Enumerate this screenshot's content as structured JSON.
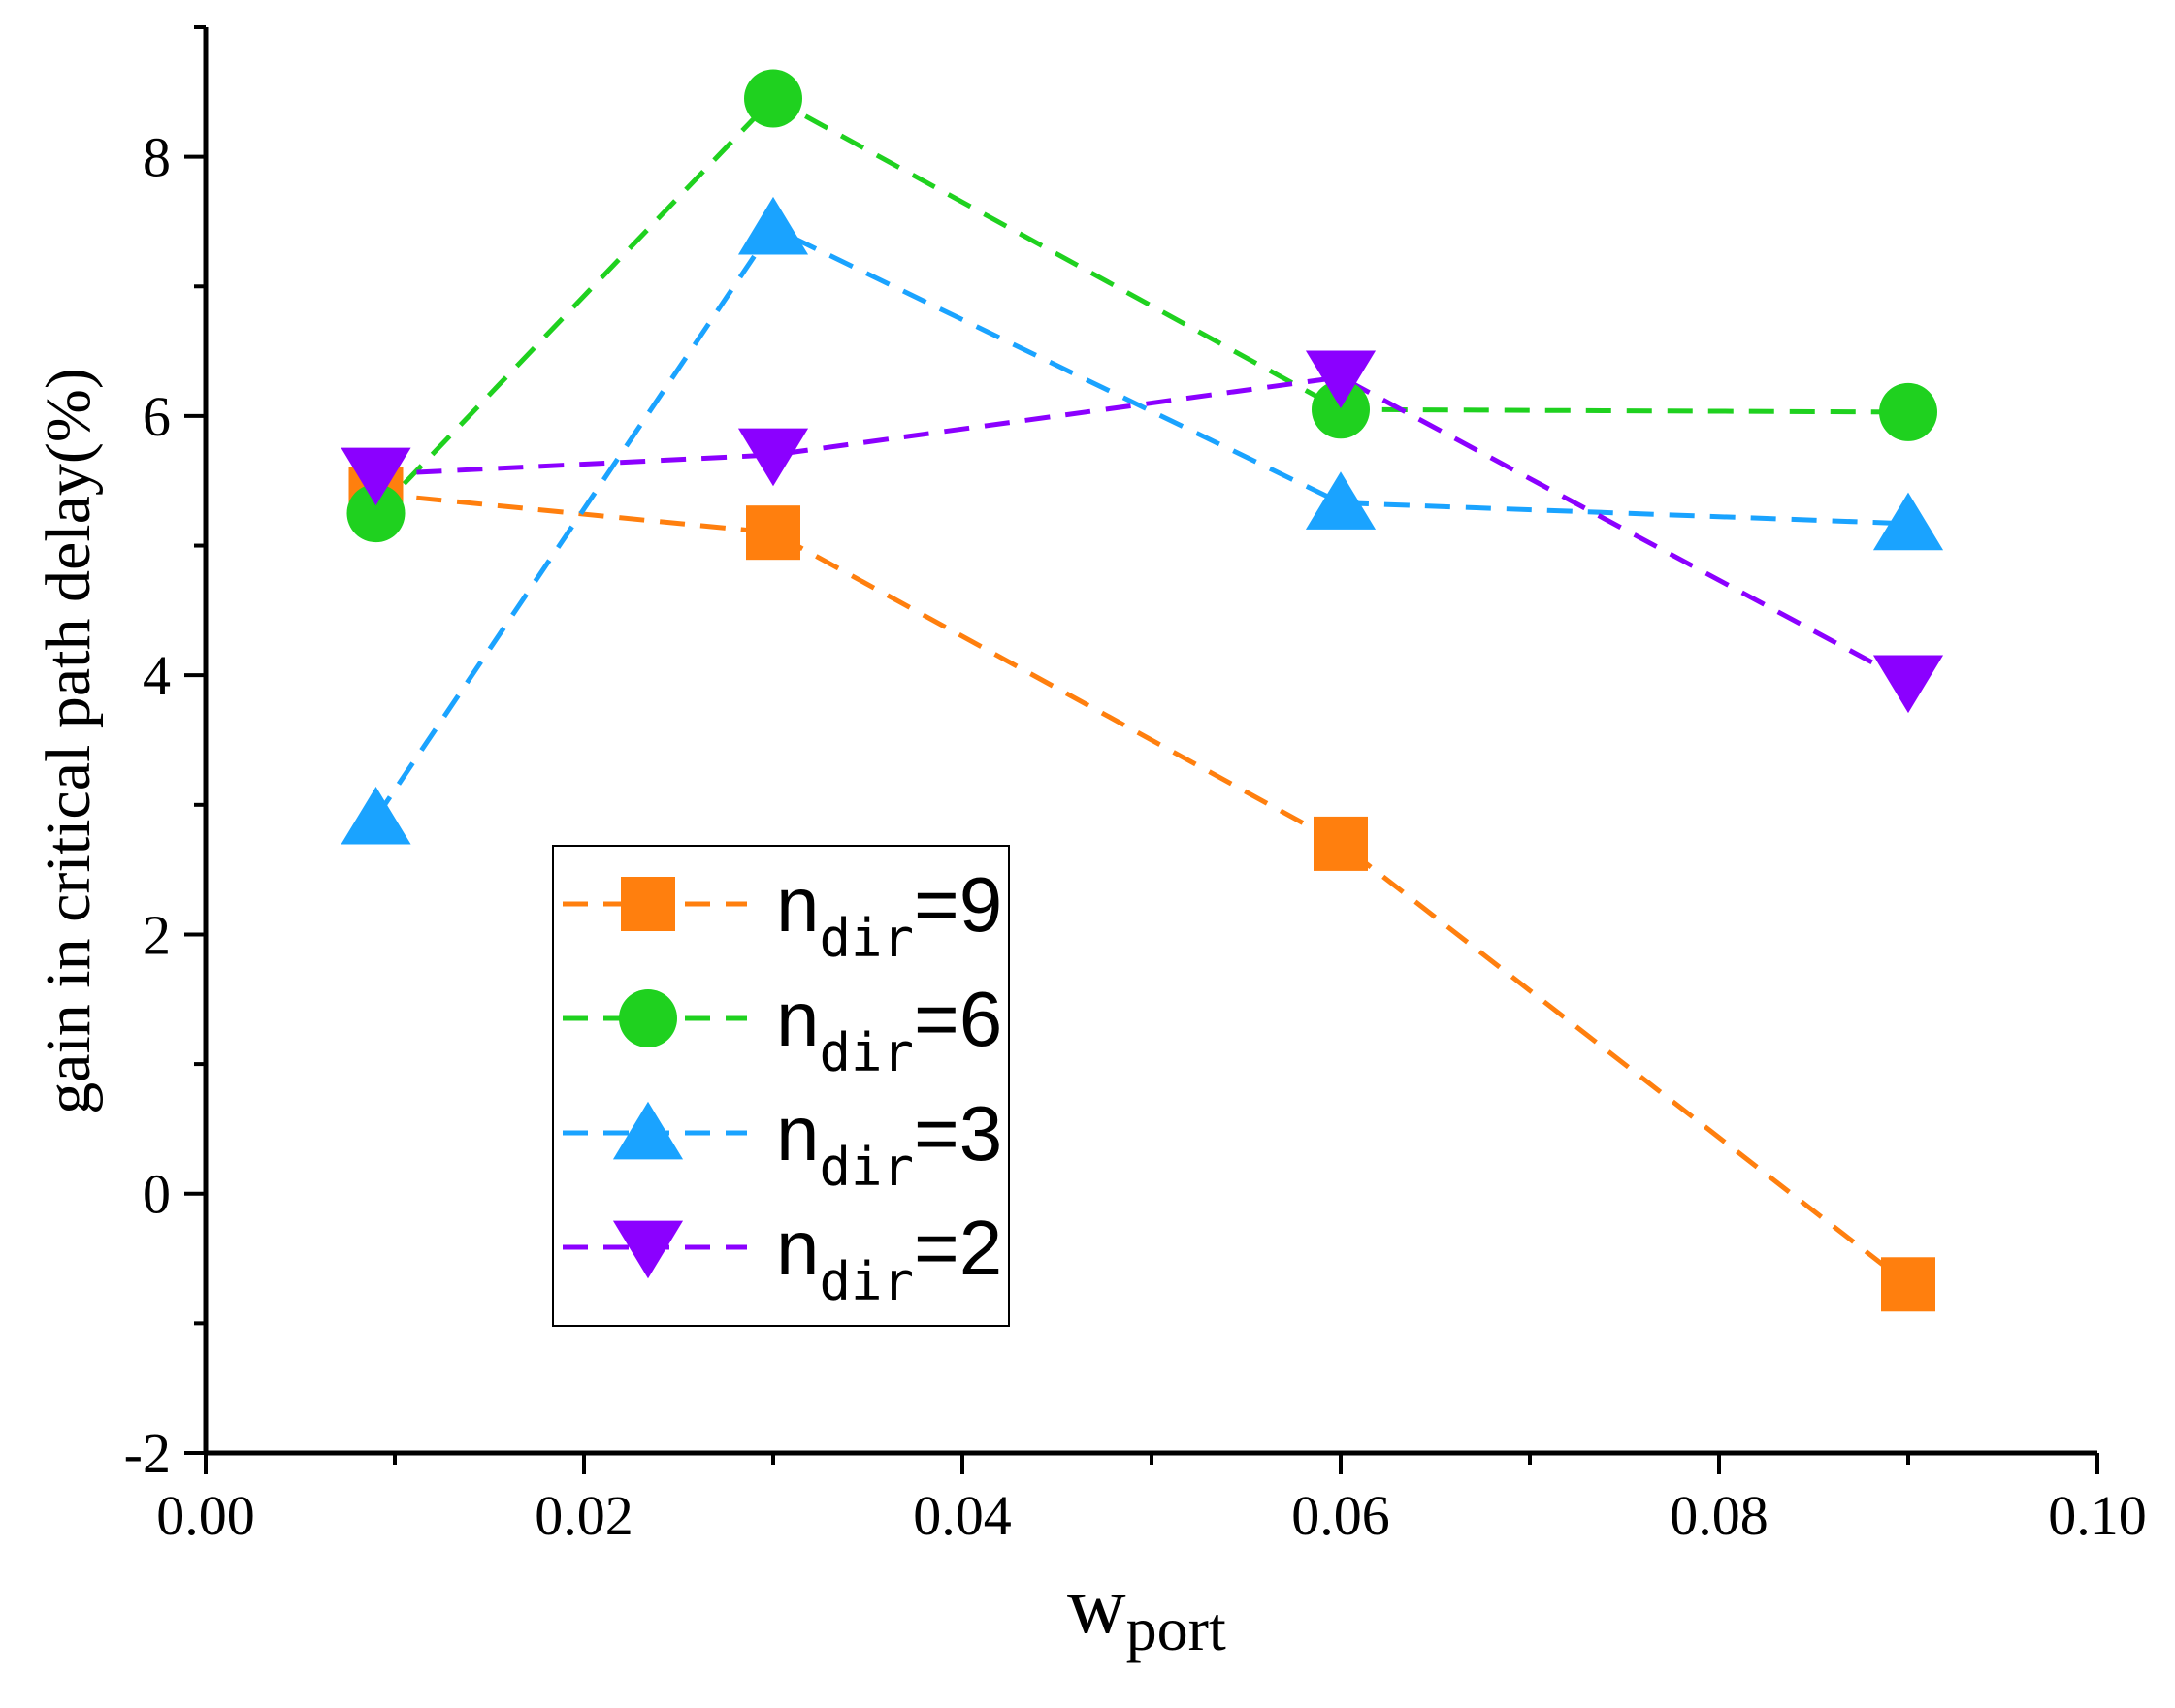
{
  "chart_data": {
    "type": "line",
    "title": "",
    "xlabel": {
      "main": "w",
      "sub": "port"
    },
    "ylabel": "gain in critical path delay(%)",
    "xlim": [
      0.0,
      0.1
    ],
    "ylim": [
      -2,
      9
    ],
    "xticks": [
      "0.00",
      "0.02",
      "0.04",
      "0.06",
      "0.08",
      "0.10"
    ],
    "yticks": [
      "-2",
      "0",
      "2",
      "4",
      "6",
      "8"
    ],
    "grid": false,
    "legend_position": "bottom-left",
    "x": [
      0.009,
      0.03,
      0.06,
      0.09
    ],
    "series": [
      {
        "name": "n_dir=9",
        "label_main": "n",
        "label_sub": "dir",
        "label_tail": "=9",
        "marker": "square",
        "color": "#ff7f0e",
        "values": [
          5.4,
          5.1,
          2.7,
          -0.7
        ]
      },
      {
        "name": "n_dir=6",
        "label_main": "n",
        "label_sub": "dir",
        "label_tail": "=6",
        "marker": "circle",
        "color": "#1fd11f",
        "values": [
          5.25,
          8.45,
          6.05,
          6.03
        ]
      },
      {
        "name": "n_dir=3",
        "label_main": "n",
        "label_sub": "dir",
        "label_tail": "=3",
        "marker": "triangle-up",
        "color": "#1aa3ff",
        "values": [
          2.9,
          7.45,
          5.33,
          5.17
        ]
      },
      {
        "name": "n_dir=2",
        "label_main": "n",
        "label_sub": "dir",
        "label_tail": "=2",
        "marker": "triangle-down",
        "color": "#8b00ff",
        "values": [
          5.55,
          5.7,
          6.3,
          3.95
        ]
      }
    ]
  }
}
